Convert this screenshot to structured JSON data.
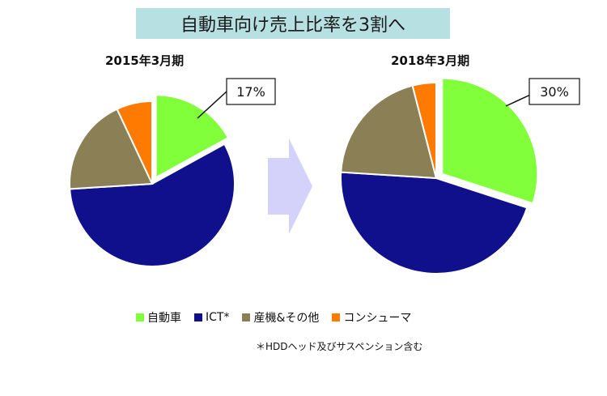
{
  "title": "自動車向け売上比率を3割へ",
  "chart_data": [
    {
      "type": "pie",
      "title": "2015年3月期",
      "labels": [
        "自動車",
        "ICT*",
        "産機&その他",
        "コンシューマ"
      ],
      "values": [
        17,
        57,
        19,
        7
      ],
      "exploded": "自動車",
      "callout": "17%"
    },
    {
      "type": "pie",
      "title": "2018年3月期",
      "labels": [
        "自動車",
        "ICT*",
        "産機&その他",
        "コンシューマ"
      ],
      "values": [
        30,
        46,
        20,
        4
      ],
      "exploded": "自動車",
      "callout": "30%"
    }
  ],
  "legend": [
    {
      "label": "自動車",
      "color": "#80ff3a"
    },
    {
      "label": "ICT*",
      "color": "#10108c"
    },
    {
      "label": "産機&その他",
      "color": "#8b7f56"
    },
    {
      "label": "コンシューマ",
      "color": "#ff7a00"
    }
  ],
  "footnote": "＊HDDヘッド及びサスペンション含む",
  "arrow_color": "#d4d2fb"
}
